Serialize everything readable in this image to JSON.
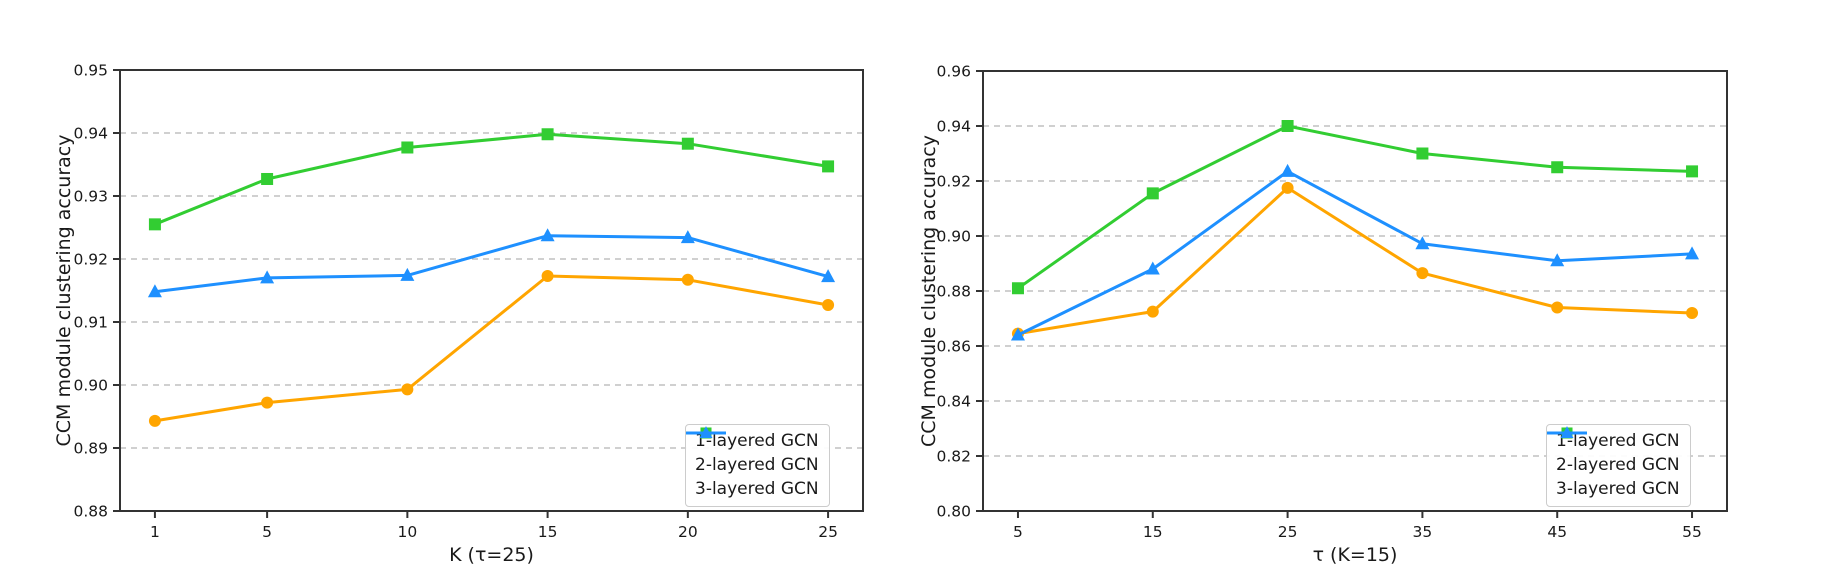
{
  "figure": {
    "background": "#ffffff",
    "text_color": "#1a1a1a",
    "grid_color": "#b3b3b3",
    "spine_color": "#333333"
  },
  "legend_labels": [
    "1-layered GCN",
    "2-layered GCN",
    "3-layered GCN"
  ],
  "chart_data": [
    {
      "type": "line",
      "title": "",
      "xlabel": "K (τ=25)",
      "ylabel": "CCM module clustering accuracy",
      "x": [
        1,
        5,
        10,
        15,
        20,
        25
      ],
      "xticks": [
        "1",
        "5",
        "10",
        "15",
        "20",
        "25"
      ],
      "ylim": [
        0.88,
        0.95
      ],
      "ytick_step": 0.01,
      "ytick_decimals": 2,
      "grid": "dashed-horizontal",
      "legend_position": "lower right",
      "series": [
        {
          "name": "1-layered GCN",
          "color": "#FFA500",
          "marker": "circle",
          "values": [
            0.8943,
            0.8972,
            0.8993,
            0.9173,
            0.9167,
            0.9127
          ]
        },
        {
          "name": "2-layered GCN",
          "color": "#32CD32",
          "marker": "square",
          "values": [
            0.9255,
            0.9327,
            0.9377,
            0.9398,
            0.9383,
            0.9347
          ]
        },
        {
          "name": "3-layered GCN",
          "color": "#1E90FF",
          "marker": "triangle",
          "values": [
            0.9148,
            0.917,
            0.9174,
            0.9237,
            0.9234,
            0.9172
          ]
        }
      ]
    },
    {
      "type": "line",
      "title": "",
      "xlabel": "τ (K=15)",
      "ylabel": "CCM module clustering accuracy",
      "x": [
        5,
        15,
        25,
        35,
        45,
        55
      ],
      "xticks": [
        "5",
        "15",
        "25",
        "35",
        "45",
        "55"
      ],
      "ylim": [
        0.8,
        0.96
      ],
      "ytick_step": 0.02,
      "ytick_decimals": 2,
      "grid": "dashed-horizontal",
      "legend_position": "lower right",
      "series": [
        {
          "name": "1-layered GCN",
          "color": "#FFA500",
          "marker": "circle",
          "values": [
            0.8645,
            0.8725,
            0.9175,
            0.8865,
            0.874,
            0.872
          ]
        },
        {
          "name": "2-layered GCN",
          "color": "#32CD32",
          "marker": "square",
          "values": [
            0.881,
            0.9155,
            0.94,
            0.93,
            0.925,
            0.9235
          ]
        },
        {
          "name": "3-layered GCN",
          "color": "#1E90FF",
          "marker": "triangle",
          "values": [
            0.864,
            0.888,
            0.9235,
            0.8972,
            0.891,
            0.8935
          ]
        }
      ]
    }
  ]
}
